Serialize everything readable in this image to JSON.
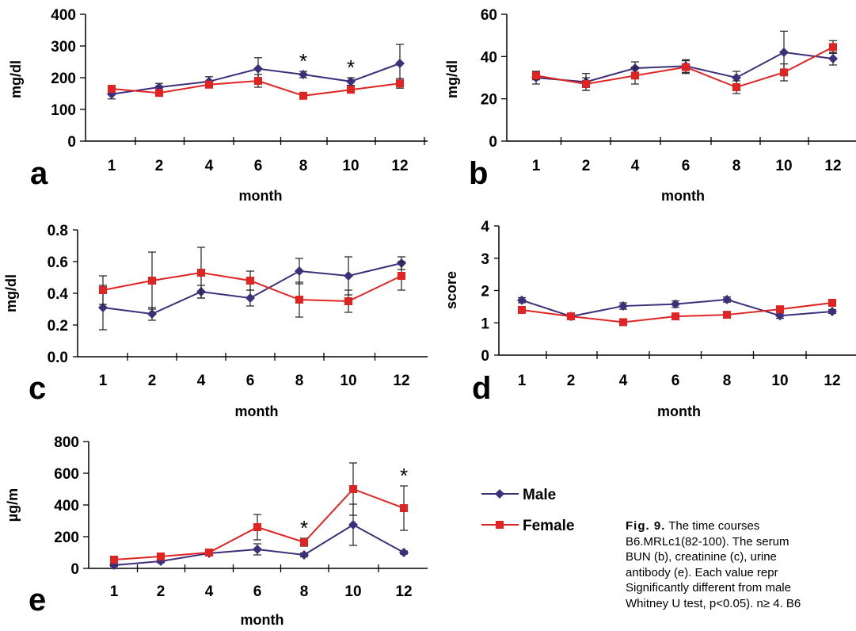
{
  "chart_data": [
    {
      "type": "line",
      "panel_letter": "a",
      "categories": [
        "1",
        "2",
        "4",
        "6",
        "8",
        "10",
        "12"
      ],
      "xlabel": "month",
      "ylabel": "mg/dl",
      "ylim": [
        0,
        400
      ],
      "yticks": [
        "0",
        "100",
        "200",
        "300",
        "400"
      ],
      "series": [
        {
          "name": "Male",
          "values": [
            148,
            170,
            188,
            228,
            210,
            188,
            245
          ],
          "errors": [
            15,
            12,
            15,
            35,
            10,
            12,
            60
          ]
        },
        {
          "name": "Female",
          "values": [
            165,
            152,
            178,
            190,
            143,
            162,
            182
          ],
          "errors": [
            10,
            8,
            8,
            20,
            10,
            8,
            15
          ]
        }
      ],
      "significance": [
        {
          "x": "8",
          "label": "*"
        },
        {
          "x": "10",
          "label": "*"
        }
      ]
    },
    {
      "type": "line",
      "panel_letter": "b",
      "categories": [
        "1",
        "2",
        "4",
        "6",
        "8",
        "10",
        "12"
      ],
      "xlabel": "month",
      "ylabel": "mg/dl",
      "ylim": [
        0,
        60
      ],
      "yticks": [
        "0",
        "20",
        "40",
        "60"
      ],
      "series": [
        {
          "name": "Male",
          "values": [
            30,
            28,
            34.5,
            35.5,
            30,
            42,
            39
          ],
          "errors": [
            3,
            4,
            3,
            3,
            3,
            10,
            3
          ]
        },
        {
          "name": "Female",
          "values": [
            31,
            27,
            31,
            35,
            25.5,
            32.5,
            44.5
          ],
          "errors": [
            2,
            3,
            4,
            3,
            3,
            4,
            3
          ]
        }
      ],
      "significance": []
    },
    {
      "type": "line",
      "panel_letter": "c",
      "categories": [
        "1",
        "2",
        "4",
        "6",
        "8",
        "10",
        "12"
      ],
      "xlabel": "month",
      "ylabel": "mg/dl",
      "ylim": [
        0,
        0.8
      ],
      "yticks": [
        "0.0",
        "0.2",
        "0.4",
        "0.6",
        "0.8"
      ],
      "series": [
        {
          "name": "Male",
          "values": [
            0.31,
            0.27,
            0.41,
            0.37,
            0.54,
            0.51,
            0.59
          ],
          "errors": [
            0.14,
            0.04,
            0.04,
            0.05,
            0.08,
            0.12,
            0.04
          ]
        },
        {
          "name": "Female",
          "values": [
            0.42,
            0.48,
            0.53,
            0.48,
            0.36,
            0.35,
            0.51
          ],
          "errors": [
            0.09,
            0.18,
            0.16,
            0.06,
            0.11,
            0.07,
            0.09
          ]
        }
      ],
      "significance": []
    },
    {
      "type": "line",
      "panel_letter": "d",
      "categories": [
        "1",
        "2",
        "4",
        "6",
        "8",
        "10",
        "12"
      ],
      "xlabel": "month",
      "ylabel": "score",
      "ylim": [
        0,
        4
      ],
      "yticks": [
        "0",
        "1",
        "2",
        "3",
        "4"
      ],
      "series": [
        {
          "name": "Male",
          "values": [
            1.7,
            1.2,
            1.52,
            1.58,
            1.72,
            1.22,
            1.35
          ],
          "errors": [
            0.08,
            0.1,
            0.1,
            0.1,
            0.08,
            0.08,
            0.06
          ]
        },
        {
          "name": "Female",
          "values": [
            1.4,
            1.2,
            1.02,
            1.2,
            1.25,
            1.42,
            1.62
          ],
          "errors": [
            0.05,
            0.05,
            0.05,
            0.05,
            0.05,
            0.05,
            0.05
          ]
        }
      ],
      "significance": []
    },
    {
      "type": "line",
      "panel_letter": "e",
      "categories": [
        "1",
        "2",
        "4",
        "6",
        "8",
        "10",
        "12"
      ],
      "xlabel": "month",
      "ylabel": "µg/m",
      "ylim": [
        0,
        800
      ],
      "yticks": [
        "0",
        "200",
        "400",
        "600",
        "800"
      ],
      "series": [
        {
          "name": "Male",
          "values": [
            20,
            45,
            95,
            120,
            85,
            275,
            100
          ],
          "errors": [
            8,
            10,
            12,
            35,
            12,
            130,
            10
          ]
        },
        {
          "name": "Female",
          "values": [
            55,
            75,
            100,
            260,
            165,
            500,
            380
          ],
          "errors": [
            8,
            10,
            10,
            80,
            25,
            165,
            140
          ]
        }
      ],
      "significance": [
        {
          "x": "8",
          "label": "*"
        },
        {
          "x": "12",
          "label": "*"
        }
      ]
    }
  ],
  "legend": [
    {
      "label": "Male",
      "color": "#3d2f7a",
      "marker": "diamond"
    },
    {
      "label": "Female",
      "color": "#e02424",
      "marker": "square"
    }
  ],
  "colors": {
    "male": "#3d2f7a",
    "female": "#e02424"
  },
  "caption": {
    "label": "Fig. 9.",
    "lines": [
      " The time courses",
      "B6.MRLc1(82-100). The serum",
      "BUN (b), creatinine (c), urine",
      "antibody (e). Each value repr",
      "Significantly different from male",
      "Whitney U test, p<0.05). n≥ 4. B6"
    ]
  }
}
